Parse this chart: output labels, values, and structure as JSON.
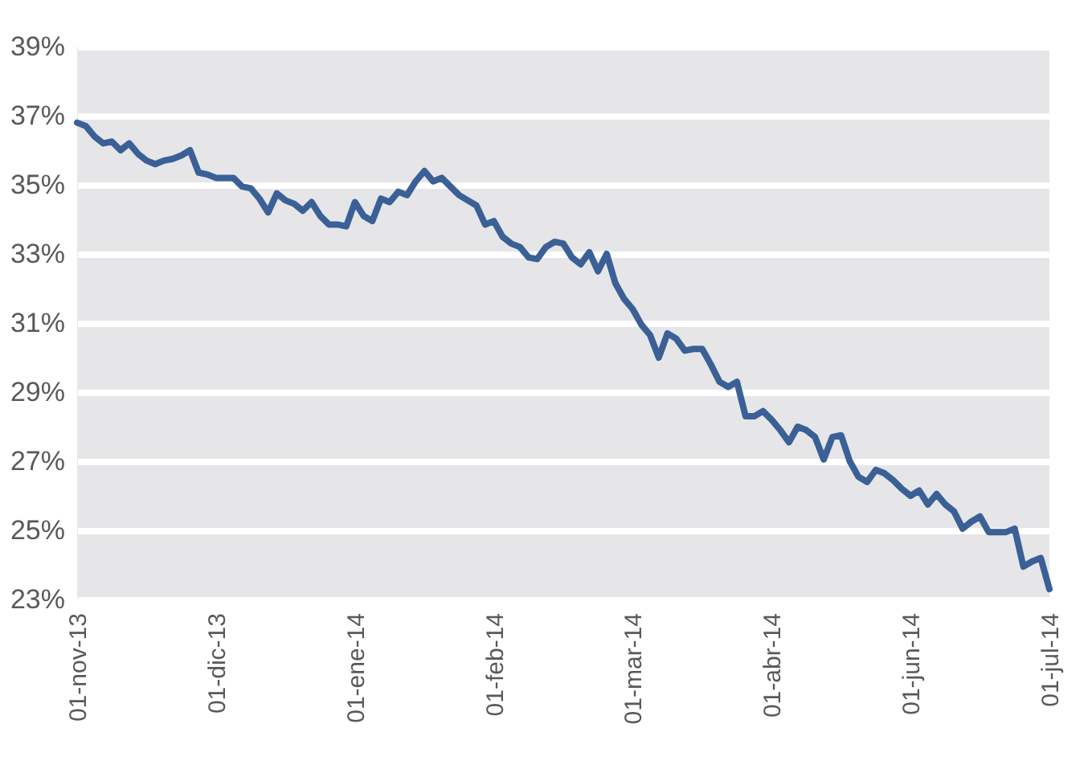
{
  "chart_data": {
    "type": "line",
    "ylim": [
      23,
      39
    ],
    "categories": [
      "01-nov-13",
      null,
      null,
      null,
      null,
      null,
      null,
      null,
      null,
      null,
      null,
      null,
      null,
      null,
      null,
      null,
      "01-dic-13",
      null,
      null,
      null,
      null,
      null,
      null,
      null,
      null,
      null,
      null,
      null,
      null,
      null,
      null,
      null,
      "01-ene-14",
      null,
      null,
      null,
      null,
      null,
      null,
      null,
      null,
      null,
      null,
      null,
      null,
      null,
      null,
      null,
      "01-feb-14",
      null,
      null,
      null,
      null,
      null,
      null,
      null,
      null,
      null,
      null,
      null,
      null,
      null,
      null,
      null,
      "01-mar-14",
      null,
      null,
      null,
      null,
      null,
      null,
      null,
      null,
      null,
      null,
      null,
      null,
      null,
      null,
      null,
      "01-abr-14",
      null,
      null,
      null,
      null,
      null,
      null,
      null,
      null,
      null,
      null,
      null,
      null,
      null,
      null,
      null,
      "01-jun-14",
      null,
      null,
      null,
      null,
      null,
      null,
      null,
      null,
      null,
      null,
      null,
      null,
      null,
      null,
      null,
      "01-jul-14"
    ],
    "yticks": [
      {
        "value": 23,
        "label": "23%"
      },
      {
        "value": 25,
        "label": "25%"
      },
      {
        "value": 27,
        "label": "27%"
      },
      {
        "value": 29,
        "label": "29%"
      },
      {
        "value": 31,
        "label": "31%"
      },
      {
        "value": 33,
        "label": "33%"
      },
      {
        "value": 35,
        "label": "35%"
      },
      {
        "value": 37,
        "label": "37%"
      },
      {
        "value": 39,
        "label": "39%"
      }
    ],
    "grid": "y",
    "marker": "none",
    "line_style": "solid",
    "series": [
      {
        "color": "#3a6096",
        "values": [
          36.8,
          36.7,
          36.4,
          36.2,
          36.25,
          36.0,
          36.2,
          35.9,
          35.7,
          35.6,
          35.7,
          35.75,
          35.85,
          36.0,
          35.35,
          35.3,
          35.2,
          35.2,
          35.2,
          34.95,
          34.9,
          34.6,
          34.2,
          34.75,
          34.55,
          34.45,
          34.25,
          34.5,
          34.1,
          33.85,
          33.85,
          33.8,
          34.5,
          34.1,
          33.95,
          34.6,
          34.5,
          34.8,
          34.7,
          35.1,
          35.4,
          35.1,
          35.2,
          34.95,
          34.7,
          34.55,
          34.4,
          33.85,
          33.95,
          33.5,
          33.3,
          33.2,
          32.9,
          32.85,
          33.2,
          33.35,
          33.3,
          32.9,
          32.7,
          33.05,
          32.5,
          33.0,
          32.15,
          31.7,
          31.4,
          30.95,
          30.65,
          30.0,
          30.7,
          30.55,
          30.2,
          30.25,
          30.25,
          29.8,
          29.3,
          29.15,
          29.3,
          28.3,
          28.3,
          28.45,
          28.2,
          27.9,
          27.55,
          28.0,
          27.9,
          27.7,
          27.05,
          27.7,
          27.75,
          27.0,
          26.55,
          26.4,
          26.75,
          26.65,
          26.45,
          26.2,
          26.0,
          26.15,
          25.75,
          26.05,
          25.75,
          25.55,
          25.05,
          25.25,
          25.4,
          24.95,
          24.95,
          24.95,
          25.05,
          23.95,
          24.1,
          24.2,
          23.3
        ]
      }
    ]
  }
}
